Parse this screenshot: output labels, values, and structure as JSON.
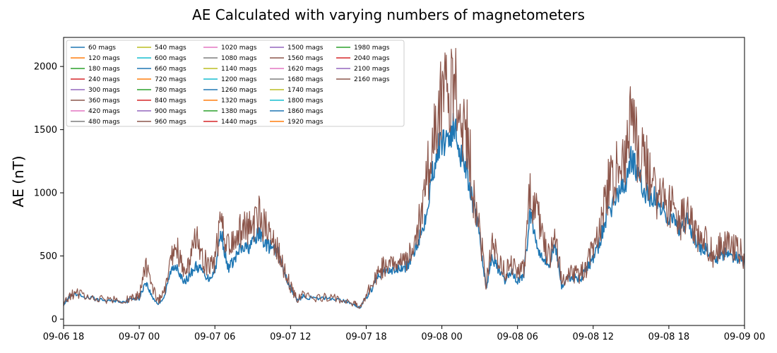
{
  "chart_data": {
    "type": "line",
    "title": "AE Calculated with varying numbers of magnetometers",
    "xlabel": "",
    "ylabel": "AE (nT)",
    "x_type": "datetime",
    "xlim": [
      "2017-09-06T18:00",
      "2017-09-09T00:00"
    ],
    "ylim": [
      -50,
      2230
    ],
    "x_ticks": [
      {
        "at": "2017-09-06T18:00",
        "label": "09-06 18"
      },
      {
        "at": "2017-09-07T00:00",
        "label": "09-07 00"
      },
      {
        "at": "2017-09-07T06:00",
        "label": "09-07 06"
      },
      {
        "at": "2017-09-07T12:00",
        "label": "09-07 12"
      },
      {
        "at": "2017-09-07T18:00",
        "label": "09-07 18"
      },
      {
        "at": "2017-09-08T00:00",
        "label": "09-08 00"
      },
      {
        "at": "2017-09-08T06:00",
        "label": "09-08 06"
      },
      {
        "at": "2017-09-08T12:00",
        "label": "09-08 12"
      },
      {
        "at": "2017-09-08T18:00",
        "label": "09-08 18"
      },
      {
        "at": "2017-09-09T00:00",
        "label": "09-09 00"
      }
    ],
    "y_ticks": [
      0,
      500,
      1000,
      1500,
      2000
    ],
    "grid": false,
    "legend_position": "top-left",
    "legend_columns": 5,
    "x": [
      "2017-09-06T18:00",
      "2017-09-06T18:30",
      "2017-09-06T19:00",
      "2017-09-06T20:00",
      "2017-09-06T21:00",
      "2017-09-06T22:00",
      "2017-09-06T23:00",
      "2017-09-06T23:30",
      "2017-09-07T00:00",
      "2017-09-07T00:30",
      "2017-09-07T01:00",
      "2017-09-07T01:30",
      "2017-09-07T02:00",
      "2017-09-07T02:30",
      "2017-09-07T03:00",
      "2017-09-07T03:30",
      "2017-09-07T04:00",
      "2017-09-07T04:30",
      "2017-09-07T05:00",
      "2017-09-07T05:30",
      "2017-09-07T06:00",
      "2017-09-07T06:30",
      "2017-09-07T07:00",
      "2017-09-07T07:30",
      "2017-09-07T08:00",
      "2017-09-07T08:30",
      "2017-09-07T09:00",
      "2017-09-07T09:30",
      "2017-09-07T10:00",
      "2017-09-07T10:30",
      "2017-09-07T11:00",
      "2017-09-07T11:30",
      "2017-09-07T12:00",
      "2017-09-07T12:30",
      "2017-09-07T13:00",
      "2017-09-07T14:00",
      "2017-09-07T15:00",
      "2017-09-07T16:00",
      "2017-09-07T17:00",
      "2017-09-07T17:30",
      "2017-09-07T18:00",
      "2017-09-07T18:30",
      "2017-09-07T19:00",
      "2017-09-07T19:30",
      "2017-09-07T20:00",
      "2017-09-07T20:30",
      "2017-09-07T21:00",
      "2017-09-07T21:30",
      "2017-09-07T22:00",
      "2017-09-07T22:30",
      "2017-09-07T23:00",
      "2017-09-07T23:30",
      "2017-09-08T00:00",
      "2017-09-08T00:30",
      "2017-09-08T01:00",
      "2017-09-08T01:30",
      "2017-09-08T02:00",
      "2017-09-08T02:30",
      "2017-09-08T03:00",
      "2017-09-08T03:30",
      "2017-09-08T04:00",
      "2017-09-08T04:30",
      "2017-09-08T05:00",
      "2017-09-08T05:30",
      "2017-09-08T06:00",
      "2017-09-08T06:30",
      "2017-09-08T07:00",
      "2017-09-08T07:30",
      "2017-09-08T08:00",
      "2017-09-08T08:30",
      "2017-09-08T09:00",
      "2017-09-08T09:30",
      "2017-09-08T10:00",
      "2017-09-08T10:30",
      "2017-09-08T11:00",
      "2017-09-08T11:30",
      "2017-09-08T12:00",
      "2017-09-08T12:30",
      "2017-09-08T13:00",
      "2017-09-08T13:30",
      "2017-09-08T14:00",
      "2017-09-08T14:30",
      "2017-09-08T15:00",
      "2017-09-08T15:30",
      "2017-09-08T16:00",
      "2017-09-08T16:30",
      "2017-09-08T17:00",
      "2017-09-08T17:30",
      "2017-09-08T18:00",
      "2017-09-08T18:30",
      "2017-09-08T19:00",
      "2017-09-08T19:30",
      "2017-09-08T20:00",
      "2017-09-08T20:30",
      "2017-09-08T21:00",
      "2017-09-08T21:30",
      "2017-09-08T22:00",
      "2017-09-08T22:30",
      "2017-09-08T23:00",
      "2017-09-08T23:30",
      "2017-09-09T00:00"
    ],
    "series": [
      {
        "name": "60 mags",
        "color": "#1f77b4",
        "values": [
          120,
          180,
          190,
          170,
          150,
          145,
          140,
          170,
          160,
          300,
          180,
          120,
          180,
          380,
          430,
          280,
          350,
          420,
          380,
          320,
          380,
          700,
          400,
          460,
          550,
          560,
          600,
          680,
          600,
          560,
          520,
          360,
          250,
          150,
          180,
          160,
          170,
          150,
          120,
          90,
          170,
          250,
          350,
          380,
          380,
          400,
          400,
          450,
          600,
          720,
          1000,
          1300,
          1400,
          1460,
          1500,
          1330,
          1180,
          900,
          650,
          250,
          500,
          380,
          300,
          380,
          300,
          350,
          850,
          600,
          500,
          420,
          600,
          260,
          320,
          330,
          320,
          400,
          480,
          600,
          800,
          900,
          1000,
          1050,
          1300,
          1150,
          1000,
          980,
          950,
          860,
          820,
          750,
          700,
          780,
          640,
          550,
          560,
          450,
          500,
          520,
          500,
          480,
          450
        ]
      },
      {
        "name": "2160 mags",
        "color": "#8c564b",
        "values": [
          130,
          190,
          200,
          180,
          160,
          150,
          150,
          180,
          180,
          420,
          250,
          150,
          220,
          450,
          580,
          350,
          450,
          650,
          480,
          420,
          450,
          820,
          560,
          620,
          690,
          750,
          780,
          800,
          720,
          650,
          560,
          380,
          260,
          160,
          190,
          170,
          180,
          160,
          130,
          100,
          180,
          300,
          380,
          420,
          420,
          450,
          450,
          500,
          700,
          850,
          1250,
          1550,
          1700,
          1800,
          1900,
          1500,
          1450,
          1020,
          700,
          300,
          600,
          460,
          380,
          450,
          350,
          400,
          1000,
          900,
          620,
          480,
          650,
          300,
          350,
          360,
          350,
          420,
          550,
          700,
          1000,
          1100,
          1200,
          1250,
          1550,
          1350,
          1250,
          1150,
          1000,
          950,
          900,
          850,
          780,
          820,
          700,
          600,
          620,
          520,
          600,
          580,
          560,
          540,
          500
        ]
      }
    ],
    "legend": [
      "60 mags",
      "120 mags",
      "180 mags",
      "240 mags",
      "300 mags",
      "360 mags",
      "420 mags",
      "480 mags",
      "540 mags",
      "600 mags",
      "660 mags",
      "720 mags",
      "780 mags",
      "840 mags",
      "900 mags",
      "960 mags",
      "1020 mags",
      "1080 mags",
      "1140 mags",
      "1200 mags",
      "1260 mags",
      "1320 mags",
      "1380 mags",
      "1440 mags",
      "1500 mags",
      "1560 mags",
      "1620 mags",
      "1680 mags",
      "1740 mags",
      "1800 mags",
      "1860 mags",
      "1920 mags",
      "1980 mags",
      "2040 mags",
      "2100 mags",
      "2160 mags"
    ],
    "legend_colors": [
      "#1f77b4",
      "#ff7f0e",
      "#2ca02c",
      "#d62728",
      "#9467bd",
      "#8c564b",
      "#e377c2",
      "#7f7f7f",
      "#bcbd22",
      "#17becf"
    ]
  }
}
